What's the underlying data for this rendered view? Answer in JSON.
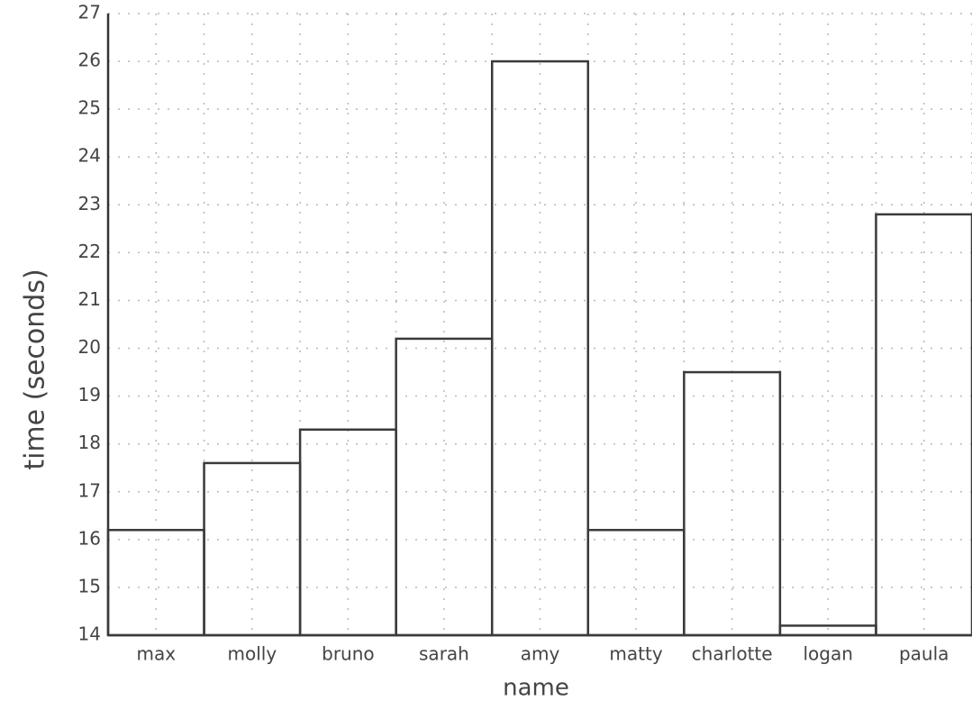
{
  "chart_data": {
    "type": "bar",
    "x_label": "name",
    "y_label": "time (seconds)",
    "categories": [
      "max",
      "molly",
      "bruno",
      "sarah",
      "amy",
      "matty",
      "charlotte",
      "logan",
      "paula"
    ],
    "values": [
      16.2,
      17.6,
      18.3,
      20.2,
      26,
      16.2,
      19.5,
      14.2,
      22.8
    ],
    "color": "#3a3a3a",
    "ylim": [
      14,
      27
    ],
    "yticks": [
      14,
      15,
      16,
      17,
      18,
      19,
      20,
      21,
      22,
      23,
      24,
      25,
      26,
      27
    ],
    "grid": true
  }
}
